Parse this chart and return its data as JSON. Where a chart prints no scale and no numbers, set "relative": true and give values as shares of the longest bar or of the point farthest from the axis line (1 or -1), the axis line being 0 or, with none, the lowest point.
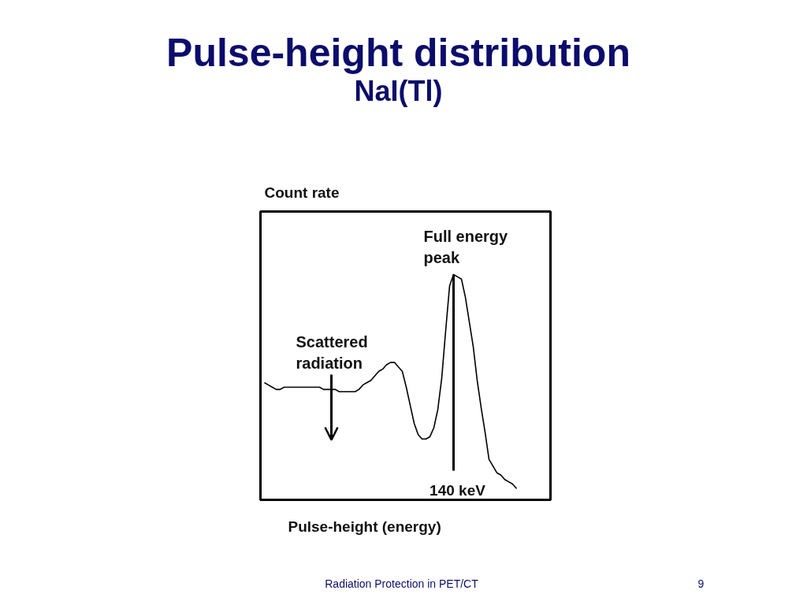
{
  "chart_data": {
    "type": "line",
    "title": "Pulse-height distribution",
    "subtitle": "NaI(Tl)",
    "xlabel": "Pulse-height (energy)",
    "ylabel": "Count rate",
    "relative": true,
    "categories": [
      null,
      null,
      null,
      null,
      null,
      null,
      null,
      null,
      null,
      null,
      null,
      null,
      null,
      null,
      null,
      null,
      null,
      null,
      null,
      null,
      null,
      null,
      null,
      null,
      null,
      null,
      null,
      null,
      null,
      null,
      null,
      null,
      null,
      null,
      null,
      null,
      null,
      null,
      null,
      null,
      null,
      null,
      null,
      null,
      null,
      null,
      null,
      null,
      null,
      null,
      null,
      null,
      null,
      null,
      null,
      null,
      null,
      null,
      null,
      null,
      null,
      null,
      null,
      null,
      null,
      null,
      null,
      null,
      null,
      null,
      null,
      null,
      null
    ],
    "series": [
      {
        "color": "#000000",
        "values": [
          0.52,
          0.51,
          0.5,
          0.49,
          0.49,
          0.5,
          0.5,
          0.5,
          0.5,
          0.5,
          0.5,
          0.5,
          0.5,
          0.5,
          0.5,
          0.49,
          0.49,
          0.49,
          0.49,
          0.48,
          0.48,
          0.48,
          0.48,
          0.48,
          0.49,
          0.51,
          0.52,
          0.53,
          0.55,
          0.57,
          0.58,
          0.6,
          0.61,
          0.61,
          0.59,
          0.57,
          0.5,
          0.42,
          0.34,
          0.29,
          0.27,
          0.27,
          0.28,
          0.32,
          0.4,
          0.54,
          0.75,
          0.95,
          1.0,
          0.99,
          0.98,
          0.9,
          0.79,
          0.68,
          0.53,
          0.41,
          0.3,
          0.18,
          0.15,
          0.12,
          0.11,
          0.09,
          0.08,
          0.07,
          0.05,
          null,
          null,
          null,
          null,
          null,
          null,
          null,
          null
        ]
      }
    ],
    "annotations": [
      "Full energy peak",
      "Scattered radiation",
      "140 keV",
      "Radiation Protection in PET/CT",
      "9"
    ]
  }
}
